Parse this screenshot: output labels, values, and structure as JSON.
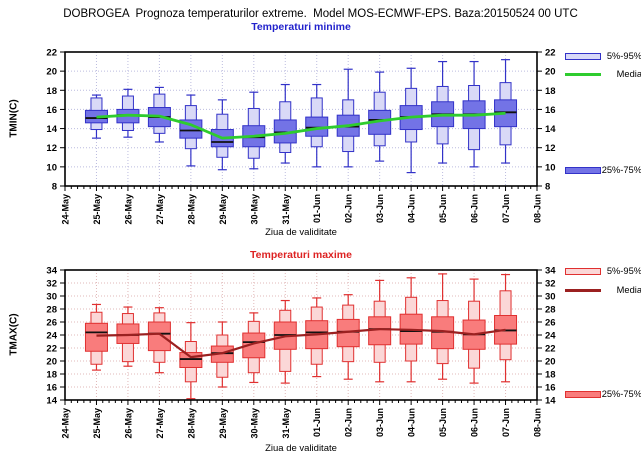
{
  "title": "DOBROGEA  Prognoza temperaturilor extreme.  Model MOS-ECMWF-EPS. Baza:20150524 00 UTC",
  "chart_data": [
    {
      "type": "box",
      "title": "Temperaturi minime",
      "xlabel": "Ziua de validitate",
      "ylabel": "TMIN(C)",
      "ylim": [
        8,
        22
      ],
      "ytick_step": 2,
      "grid": true,
      "x_ticks": [
        "24-May",
        "25-May",
        "26-May",
        "27-May",
        "28-May",
        "29-May",
        "30-May",
        "31-May",
        "01-Jun",
        "02-Jun",
        "03-Jun",
        "04-Jun",
        "05-Jun",
        "06-Jun",
        "07-Jun",
        "08-Jun"
      ],
      "categories": [
        "25-May",
        "26-May",
        "27-May",
        "28-May",
        "29-May",
        "30-May",
        "31-May",
        "01-Jun",
        "02-Jun",
        "03-Jun",
        "04-Jun",
        "05-Jun",
        "06-Jun",
        "07-Jun"
      ],
      "box_stats": {
        "min": [
          13.0,
          13.1,
          12.6,
          10.1,
          9.7,
          9.8,
          10.4,
          10.0,
          10.0,
          10.6,
          9.4,
          10.4,
          10.0,
          10.4
        ],
        "p5": [
          13.9,
          13.8,
          13.5,
          11.9,
          11.0,
          10.9,
          11.5,
          12.1,
          11.6,
          12.2,
          12.6,
          12.4,
          11.8,
          12.3
        ],
        "p25": [
          14.6,
          14.6,
          14.2,
          13.0,
          12.1,
          12.1,
          12.5,
          13.2,
          13.2,
          13.4,
          13.9,
          14.2,
          14.0,
          14.2
        ],
        "median": [
          15.1,
          15.4,
          15.2,
          13.8,
          12.6,
          13.1,
          13.6,
          14.1,
          14.2,
          14.9,
          15.2,
          15.5,
          15.5,
          15.7
        ],
        "p75": [
          15.9,
          16.0,
          16.2,
          14.9,
          13.9,
          14.3,
          14.9,
          15.2,
          15.4,
          15.9,
          16.4,
          16.8,
          16.9,
          17.0
        ],
        "p95": [
          17.2,
          17.4,
          17.6,
          16.4,
          15.5,
          16.1,
          16.8,
          17.2,
          17.0,
          17.8,
          18.2,
          18.4,
          18.5,
          18.8
        ],
        "max": [
          17.5,
          18.1,
          18.3,
          17.5,
          17.0,
          17.8,
          18.6,
          18.6,
          20.2,
          19.9,
          20.3,
          21.0,
          21.0,
          21.2
        ]
      },
      "mean": [
        15.2,
        15.4,
        15.3,
        14.4,
        13.0,
        13.2,
        13.5,
        14.0,
        14.3,
        14.8,
        15.2,
        15.4,
        15.4,
        15.6
      ],
      "legend": [
        {
          "label": "5%-95%",
          "swatch": "box-light"
        },
        {
          "label": "Media",
          "swatch": "line"
        },
        {
          "label": "25%-75%",
          "swatch": "box-dark"
        }
      ],
      "palette": {
        "title": "#2222cc",
        "border": "#3232c8",
        "box_dark": "#7373e6",
        "box_light": "#d9d9f7",
        "mean_line": "#2ecc2e",
        "median_line": "#111111",
        "grid": "#bcbcdf"
      }
    },
    {
      "type": "box",
      "title": "Temperaturi maxime",
      "xlabel": "Ziua de validitate",
      "ylabel": "TMAX(C)",
      "ylim": [
        14,
        34
      ],
      "ytick_step": 2,
      "grid": true,
      "x_ticks": [
        "24-May",
        "25-May",
        "26-May",
        "27-May",
        "28-May",
        "29-May",
        "30-May",
        "31-May",
        "01-Jun",
        "02-Jun",
        "03-Jun",
        "04-Jun",
        "05-Jun",
        "06-Jun",
        "07-Jun",
        "08-Jun"
      ],
      "categories": [
        "25-May",
        "26-May",
        "27-May",
        "28-May",
        "29-May",
        "30-May",
        "31-May",
        "01-Jun",
        "02-Jun",
        "03-Jun",
        "04-Jun",
        "05-Jun",
        "06-Jun",
        "07-Jun"
      ],
      "box_stats": {
        "min": [
          18.6,
          19.2,
          18.2,
          14.2,
          16.0,
          16.7,
          16.6,
          17.6,
          17.2,
          16.8,
          16.8,
          17.2,
          16.6,
          16.8
        ],
        "p5": [
          19.5,
          19.9,
          19.8,
          16.8,
          17.5,
          18.2,
          18.4,
          19.5,
          19.9,
          19.8,
          20.0,
          19.6,
          18.9,
          20.2
        ],
        "p25": [
          21.5,
          22.7,
          21.6,
          19.0,
          19.8,
          20.5,
          21.8,
          21.9,
          22.2,
          22.5,
          22.6,
          21.9,
          21.8,
          22.6
        ],
        "median": [
          24.4,
          24.0,
          24.2,
          20.3,
          21.2,
          22.9,
          24.0,
          24.4,
          24.5,
          24.9,
          24.6,
          24.5,
          24.1,
          24.7
        ],
        "p75": [
          25.8,
          25.7,
          26.0,
          21.3,
          22.3,
          24.3,
          26.0,
          26.2,
          26.4,
          26.8,
          27.2,
          26.8,
          26.3,
          27.0
        ],
        "p95": [
          27.5,
          27.3,
          27.4,
          23.0,
          24.0,
          26.1,
          27.8,
          28.3,
          28.6,
          29.2,
          29.8,
          29.3,
          29.2,
          30.8
        ],
        "max": [
          28.7,
          28.3,
          28.2,
          25.9,
          26.0,
          27.4,
          29.3,
          29.7,
          30.2,
          32.4,
          32.8,
          33.4,
          32.6,
          33.3
        ]
      },
      "mean": [
        23.9,
        24.0,
        24.2,
        20.6,
        21.2,
        22.7,
        23.8,
        24.1,
        24.5,
        24.9,
        24.8,
        24.6,
        24.1,
        24.8
      ],
      "legend": [
        {
          "label": "5%-95%",
          "swatch": "box-light"
        },
        {
          "label": "Media",
          "swatch": "line"
        },
        {
          "label": "25%-75%",
          "swatch": "box-dark"
        }
      ],
      "palette": {
        "title": "#dd2222",
        "border": "#e03030",
        "box_dark": "#f97c7c",
        "box_light": "#fbd7d7",
        "mean_line": "#9b2020",
        "median_line": "#111111",
        "grid": "#e0b8b8"
      }
    }
  ]
}
